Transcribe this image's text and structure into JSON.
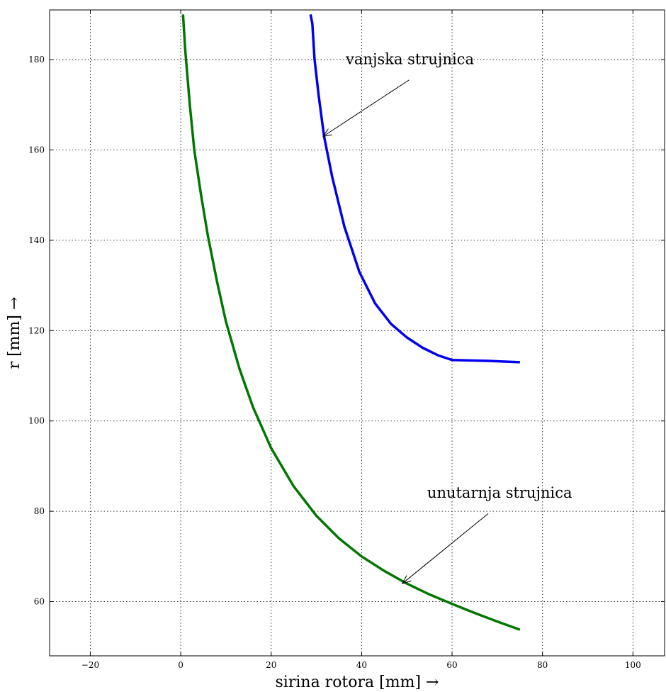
{
  "chart_data": {
    "type": "line",
    "title": "",
    "xlabel": "sirina rotora [mm] →",
    "ylabel": "r [mm] →",
    "xlim": [
      -29,
      107
    ],
    "ylim": [
      48,
      191
    ],
    "xticks": [
      -20,
      0,
      20,
      40,
      60,
      80,
      100
    ],
    "xtick_labels": [
      "−20",
      "0",
      "20",
      "40",
      "60",
      "80",
      "100"
    ],
    "yticks": [
      60,
      80,
      100,
      120,
      140,
      160,
      180
    ],
    "ytick_labels": [
      "60",
      "80",
      "100",
      "120",
      "140",
      "160",
      "180"
    ],
    "grid": true,
    "series": [
      {
        "color": "#0000ee",
        "x": [
          28.7,
          29.1,
          29.6,
          30.5,
          31.7,
          33.5,
          36.2,
          39.5,
          43.0,
          46.5,
          50.0,
          53.5,
          57.0,
          60.0,
          68.0,
          75.0
        ],
        "y": [
          190,
          188,
          180,
          172,
          163,
          154,
          143,
          133,
          126,
          121.5,
          118.5,
          116.2,
          114.5,
          113.5,
          113.3,
          113.0
        ]
      },
      {
        "color": "#007700",
        "x": [
          0.5,
          1.0,
          2.0,
          3.0,
          4.5,
          6.0,
          8.0,
          10.0,
          13.0,
          16.0,
          20.0,
          25.0,
          30.0,
          35.0,
          40.0,
          45.0,
          50.0,
          55.0,
          60.0,
          65.0,
          70.0,
          75.0
        ],
        "y": [
          190,
          182,
          170,
          160,
          150,
          141,
          131,
          122,
          111.5,
          103,
          94,
          85.5,
          79,
          74,
          70,
          66.8,
          64,
          61.6,
          59.5,
          57.5,
          55.6,
          53.8
        ]
      }
    ],
    "annotations": [
      {
        "text": "vanjska strujnica",
        "text_x": 36.5,
        "text_y": 179,
        "arrow_from_x": 50.5,
        "arrow_from_y": 175.5,
        "arrow_to_x": 31.5,
        "arrow_to_y": 163
      },
      {
        "text": "unutarnja strujnica",
        "text_x": 54.5,
        "text_y": 83,
        "arrow_from_x": 68.0,
        "arrow_from_y": 79.5,
        "arrow_to_x": 49.0,
        "arrow_to_y": 64
      }
    ]
  }
}
